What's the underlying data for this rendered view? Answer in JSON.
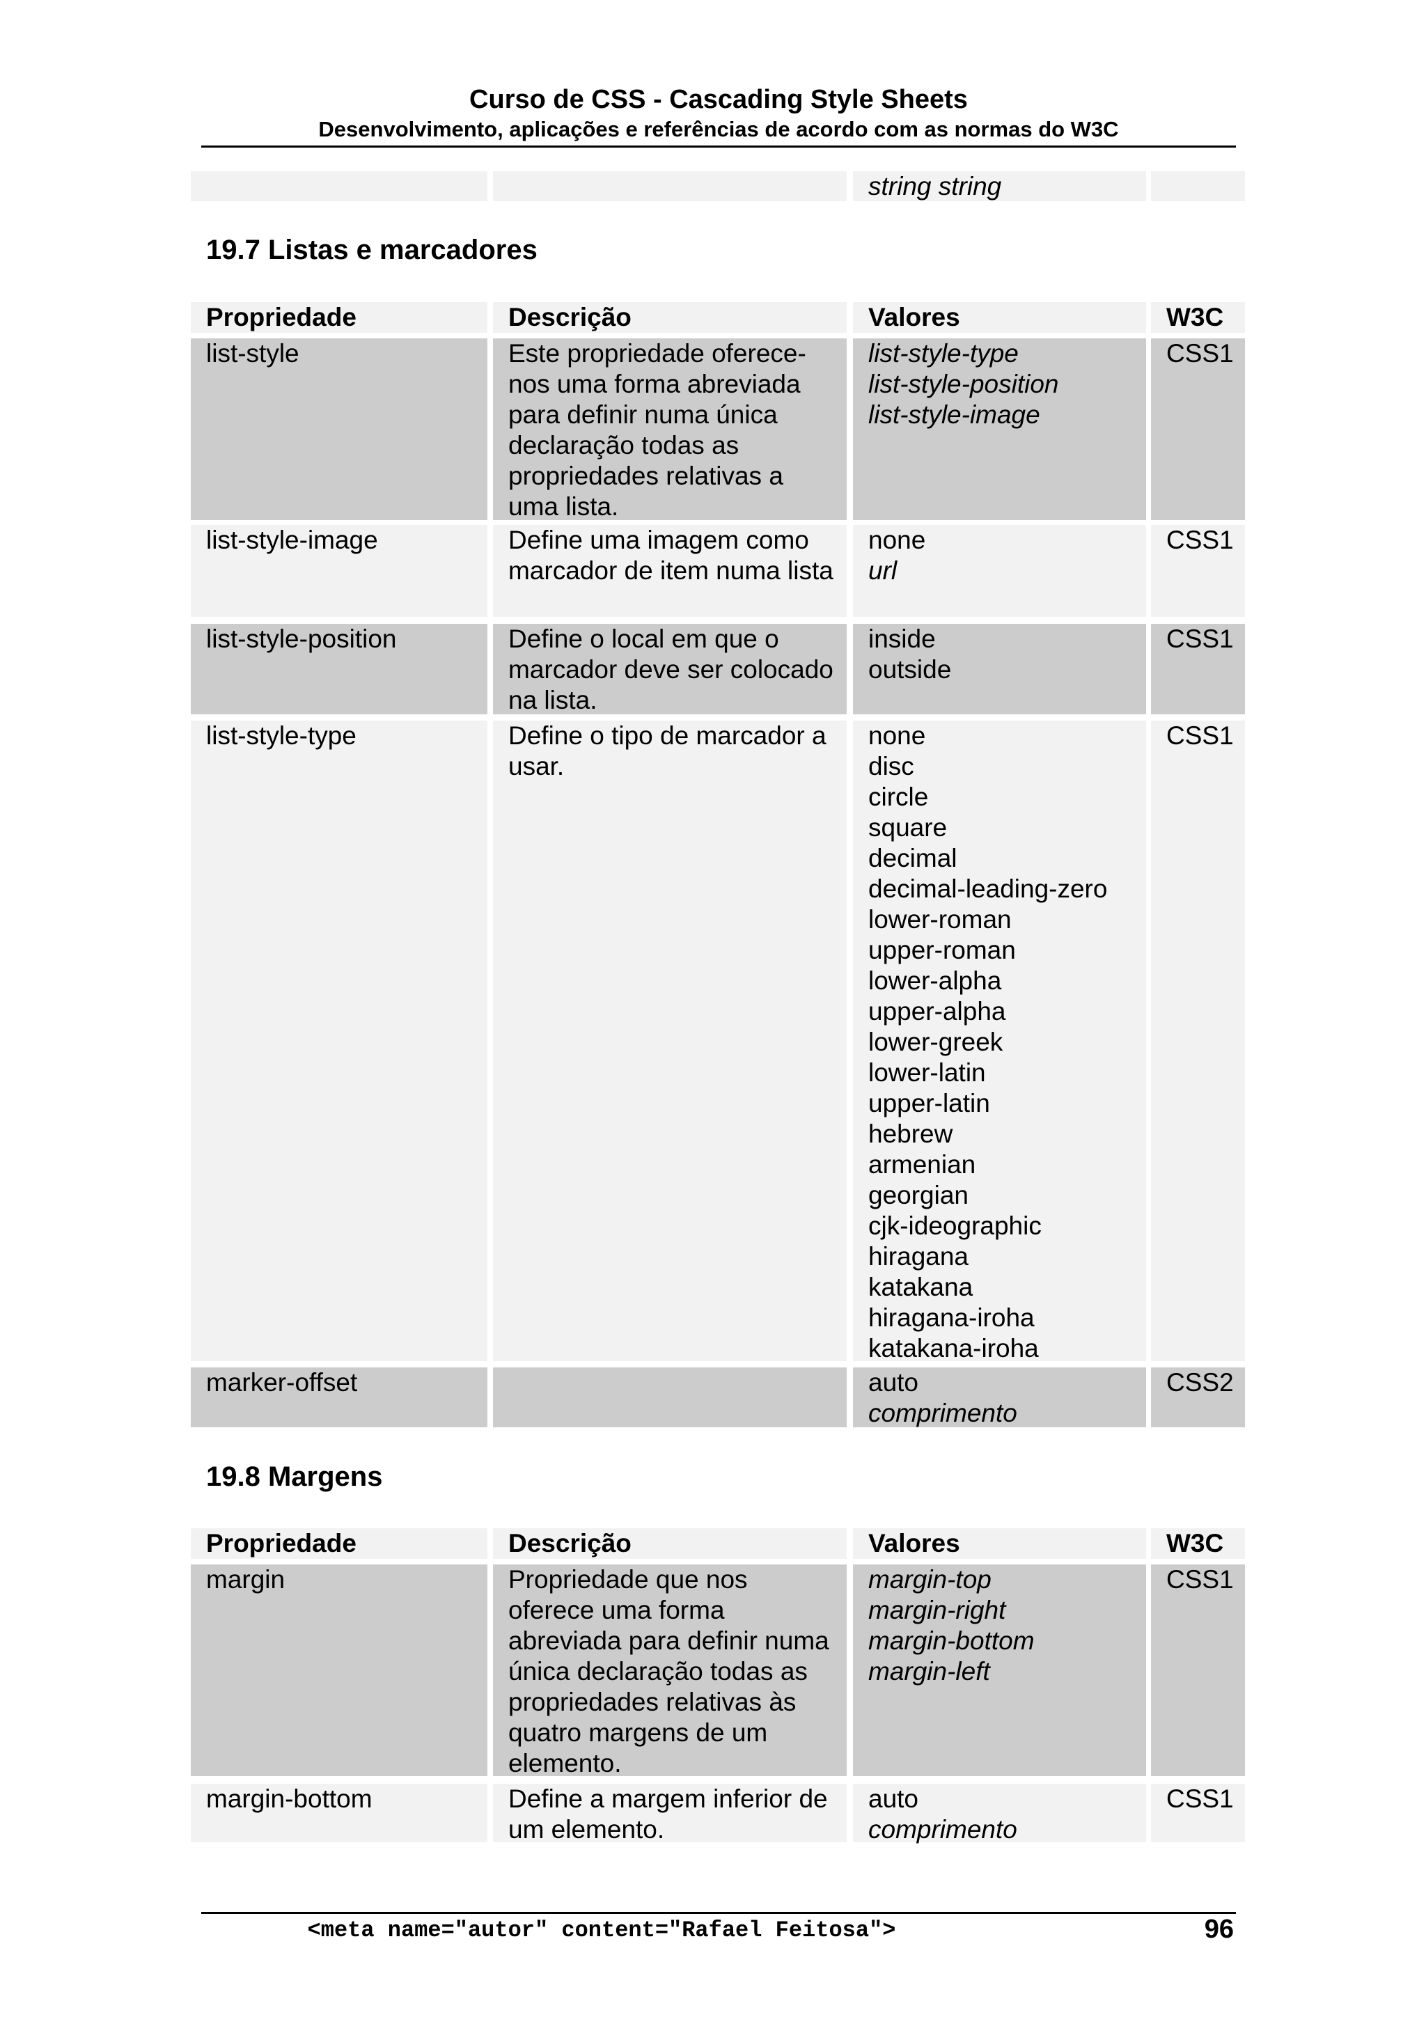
{
  "header": {
    "title": "Curso de CSS - Cascading Style Sheets",
    "subtitle": "Desenvolvimento, aplicações e referências de acordo com as normas do W3C"
  },
  "colors": {
    "row_light": "#f2f2f2",
    "row_dark": "#cccccc"
  },
  "continued_row": {
    "property": "",
    "description": "",
    "values": [
      {
        "text": "string string",
        "italic": true
      }
    ],
    "w3c": ""
  },
  "sections": [
    {
      "heading": "19.7 Listas e marcadores",
      "columns": [
        "Propriedade",
        "Descrição",
        "Valores",
        "W3C"
      ],
      "rows": [
        {
          "property": "list-style",
          "description": "Este propriedade oferece-nos uma forma abreviada para definir numa única declaração todas as propriedades relativas a uma lista.",
          "values": [
            {
              "text": "list-style-type",
              "italic": true
            },
            {
              "text": "list-style-position",
              "italic": true
            },
            {
              "text": "list-style-image",
              "italic": true
            }
          ],
          "w3c": "CSS1"
        },
        {
          "property": "list-style-image",
          "description": "Define uma imagem como marcador de item numa lista",
          "values": [
            {
              "text": "none",
              "italic": false
            },
            {
              "text": "url",
              "italic": true
            }
          ],
          "w3c": "CSS1"
        },
        {
          "property": "list-style-position",
          "description": "Define o local em que o marcador deve ser colocado na lista.",
          "values": [
            {
              "text": "inside",
              "italic": false
            },
            {
              "text": "outside",
              "italic": false
            }
          ],
          "w3c": "CSS1"
        },
        {
          "property": "list-style-type",
          "description": "Define o tipo de marcador a usar.",
          "values": [
            {
              "text": "none",
              "italic": false
            },
            {
              "text": "disc",
              "italic": false
            },
            {
              "text": "circle",
              "italic": false
            },
            {
              "text": "square",
              "italic": false
            },
            {
              "text": "decimal",
              "italic": false
            },
            {
              "text": "decimal-leading-zero",
              "italic": false
            },
            {
              "text": "lower-roman",
              "italic": false
            },
            {
              "text": "upper-roman",
              "italic": false
            },
            {
              "text": "lower-alpha",
              "italic": false
            },
            {
              "text": "upper-alpha",
              "italic": false
            },
            {
              "text": "lower-greek",
              "italic": false
            },
            {
              "text": "lower-latin",
              "italic": false
            },
            {
              "text": "upper-latin",
              "italic": false
            },
            {
              "text": "hebrew",
              "italic": false
            },
            {
              "text": "armenian",
              "italic": false
            },
            {
              "text": "georgian",
              "italic": false
            },
            {
              "text": "cjk-ideographic",
              "italic": false
            },
            {
              "text": "hiragana",
              "italic": false
            },
            {
              "text": "katakana",
              "italic": false
            },
            {
              "text": "hiragana-iroha",
              "italic": false
            },
            {
              "text": "katakana-iroha",
              "italic": false
            }
          ],
          "w3c": "CSS1"
        },
        {
          "property": "marker-offset",
          "description": "",
          "values": [
            {
              "text": "auto",
              "italic": false
            },
            {
              "text": "comprimento",
              "italic": true
            }
          ],
          "w3c": "CSS2"
        }
      ]
    },
    {
      "heading": "19.8 Margens",
      "columns": [
        "Propriedade",
        "Descrição",
        "Valores",
        "W3C"
      ],
      "rows": [
        {
          "property": "margin",
          "description": "Propriedade que nos oferece uma forma abreviada para definir numa única declaração todas as propriedades relativas às quatro margens de um elemento.",
          "values": [
            {
              "text": "margin-top",
              "italic": true
            },
            {
              "text": "margin-right",
              "italic": true
            },
            {
              "text": "margin-bottom",
              "italic": true
            },
            {
              "text": "margin-left",
              "italic": true
            }
          ],
          "w3c": "CSS1"
        },
        {
          "property": "margin-bottom",
          "description": "Define a margem inferior de um elemento.",
          "values": [
            {
              "text": "auto",
              "italic": false
            },
            {
              "text": "comprimento",
              "italic": true
            }
          ],
          "w3c": "CSS1"
        }
      ]
    }
  ],
  "footer": {
    "text": "<meta name=\"autor\" content=\"Rafael Feitosa\">",
    "page_number": "96"
  }
}
